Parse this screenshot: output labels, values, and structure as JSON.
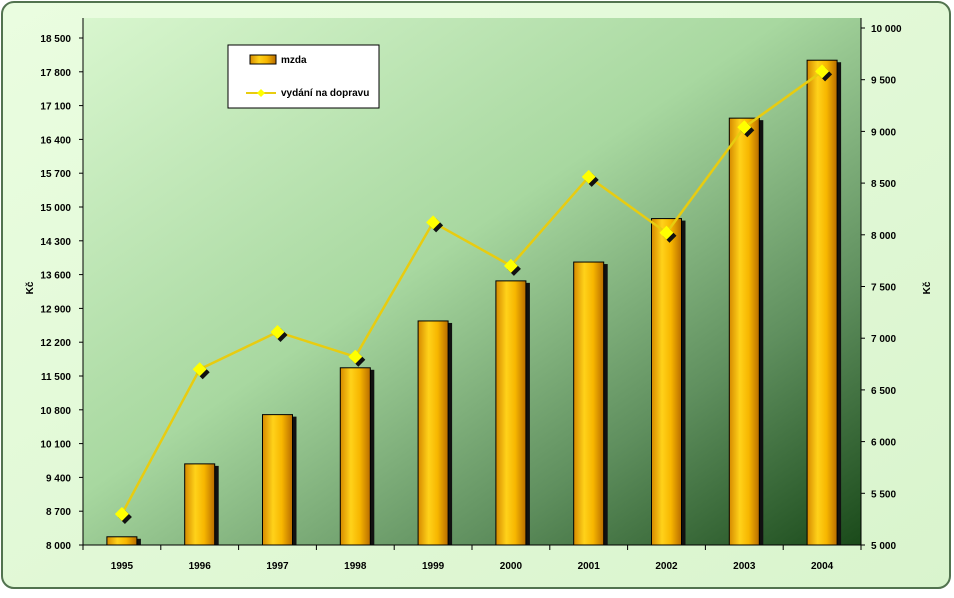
{
  "chart_data": {
    "type": "bar",
    "categories": [
      "1995",
      "1996",
      "1997",
      "1998",
      "1999",
      "2000",
      "2001",
      "2002",
      "2003",
      "2004"
    ],
    "series": [
      {
        "name": "mzda",
        "type": "bar",
        "axis": "left",
        "values": [
          8170,
          9680,
          10700,
          11670,
          12640,
          13470,
          13860,
          14760,
          16840,
          18040
        ],
        "color": "#f2b400"
      },
      {
        "name": "vydání na dopravu",
        "type": "line",
        "axis": "right",
        "values": [
          5300,
          6700,
          7060,
          6820,
          8120,
          7700,
          8560,
          8020,
          9040,
          9580
        ],
        "color": "#ffff00",
        "line_color": "#e8cc10"
      }
    ],
    "y_left": {
      "label": "Kč",
      "range": [
        8000,
        18500
      ],
      "ticks": [
        "8 000",
        "8 700",
        "9 400",
        "10 100",
        "10 800",
        "11 500",
        "12 200",
        "12 900",
        "13 600",
        "14 300",
        "15 000",
        "15 700",
        "16 400",
        "17 100",
        "17 800",
        "18 500"
      ]
    },
    "y_right": {
      "label": "Kč",
      "range": [
        5000,
        10000
      ],
      "ticks": [
        "5 000",
        "5 500",
        "6 000",
        "6 500",
        "7 000",
        "7 500",
        "8 000",
        "8 500",
        "9 000",
        "9 500",
        "10 000"
      ]
    },
    "legend": {
      "placement": "top-left",
      "entries": [
        "mzda",
        "vydání na dopravu"
      ]
    },
    "grid": false,
    "colors": {
      "frame_background": "#e4fadb",
      "frame_border": "#6f8f6a",
      "plot_light": "#d6f6cc",
      "plot_mid": "#7faa7a",
      "plot_dark": "#1e4e1e",
      "bar_light": "#ffe040",
      "bar_dark": "#c67600",
      "bar_shadow": "#111111"
    }
  }
}
